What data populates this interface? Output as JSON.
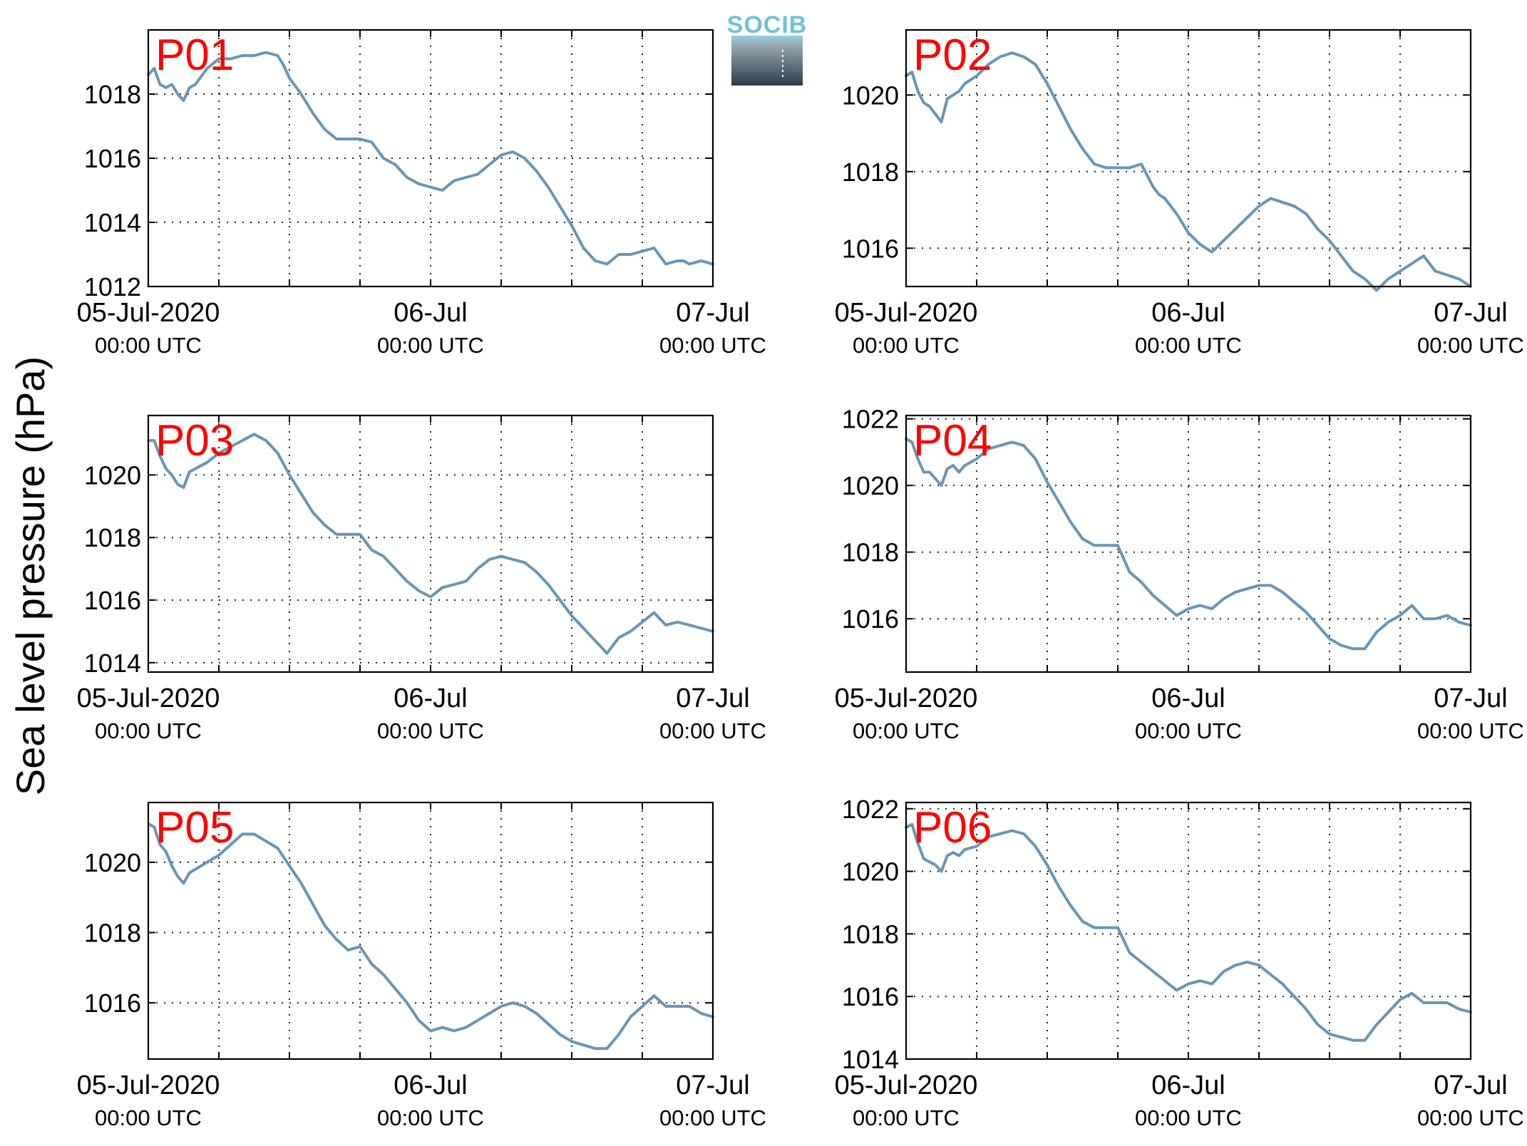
{
  "figure": {
    "ylabel": "Sea level pressure (hPa)",
    "logo_text": "SOCIB",
    "line_color": "#6a95b6",
    "tag_color": "#ff0000"
  },
  "chart_data": [
    {
      "type": "line",
      "tag": "P01",
      "ylim": [
        1012,
        1020
      ],
      "yticks": [
        1012,
        1014,
        1016,
        1018
      ],
      "xlim": [
        0,
        48
      ],
      "x_tick_hours": [
        0,
        24,
        48
      ],
      "x_tick_labels": [
        [
          "05-Jul-2020",
          "00:00 UTC"
        ],
        [
          "06-Jul",
          "00:00 UTC"
        ],
        [
          "07-Jul",
          "00:00 UTC"
        ]
      ],
      "x_unit": "hours since 05-Jul-2020 00:00 UTC",
      "grid": true,
      "series": [
        {
          "x": [
            0,
            0.5,
            1,
            1.5,
            2,
            2.5,
            3,
            3.5,
            4,
            5,
            6,
            7,
            8,
            9,
            10,
            11,
            11.5,
            12,
            13,
            14,
            15,
            16,
            17,
            18,
            19,
            20,
            21,
            22,
            23,
            24,
            25,
            26,
            27,
            28,
            29,
            30,
            31,
            32,
            33,
            34,
            35,
            36,
            37,
            38,
            39,
            40,
            41,
            42,
            43,
            44,
            45,
            45.5,
            46,
            47,
            48
          ],
          "y": [
            1018.6,
            1018.8,
            1018.3,
            1018.2,
            1018.3,
            1018.0,
            1017.8,
            1018.2,
            1018.3,
            1018.8,
            1019.1,
            1019.1,
            1019.2,
            1019.2,
            1019.3,
            1019.2,
            1018.9,
            1018.5,
            1018.0,
            1017.4,
            1016.9,
            1016.6,
            1016.6,
            1016.6,
            1016.5,
            1016.0,
            1015.8,
            1015.4,
            1015.2,
            1015.1,
            1015.0,
            1015.3,
            1015.4,
            1015.5,
            1015.8,
            1016.1,
            1016.2,
            1016.0,
            1015.6,
            1015.1,
            1014.5,
            1013.9,
            1013.2,
            1012.8,
            1012.7,
            1013.0,
            1013.0,
            1013.1,
            1013.2,
            1012.7,
            1012.8,
            1012.8,
            1012.7,
            1012.8,
            1012.7
          ]
        }
      ]
    },
    {
      "type": "line",
      "tag": "P02",
      "ylim": [
        1015,
        1021.7
      ],
      "yticks": [
        1016,
        1018,
        1020
      ],
      "xlim": [
        0,
        48
      ],
      "x_tick_hours": [
        0,
        24,
        48
      ],
      "x_tick_labels": [
        [
          "05-Jul-2020",
          "00:00 UTC"
        ],
        [
          "06-Jul",
          "00:00 UTC"
        ],
        [
          "07-Jul",
          "00:00 UTC"
        ]
      ],
      "x_unit": "hours since 05-Jul-2020 00:00 UTC",
      "grid": true,
      "series": [
        {
          "x": [
            0,
            0.5,
            1,
            1.5,
            2,
            2.5,
            3,
            3.5,
            4,
            4.5,
            5,
            6,
            7,
            8,
            9,
            10,
            11,
            12,
            13,
            14,
            15,
            16,
            17,
            18,
            19,
            20,
            21,
            21.5,
            22,
            23,
            24,
            25,
            26,
            27,
            28,
            29,
            30,
            31,
            32,
            33,
            34,
            35,
            36,
            37,
            38,
            39,
            40,
            41,
            42,
            43,
            44,
            45,
            46,
            47,
            48
          ],
          "y": [
            1020.5,
            1020.6,
            1020.1,
            1019.8,
            1019.7,
            1019.5,
            1019.3,
            1019.9,
            1020.0,
            1020.1,
            1020.3,
            1020.5,
            1020.8,
            1021.0,
            1021.1,
            1021.0,
            1020.8,
            1020.3,
            1019.7,
            1019.1,
            1018.6,
            1018.2,
            1018.1,
            1018.1,
            1018.1,
            1018.2,
            1017.6,
            1017.4,
            1017.3,
            1016.9,
            1016.4,
            1016.1,
            1015.9,
            1016.2,
            1016.5,
            1016.8,
            1017.1,
            1017.3,
            1017.2,
            1017.1,
            1016.9,
            1016.5,
            1016.2,
            1015.8,
            1015.4,
            1015.2,
            1014.9,
            1015.2,
            1015.4,
            1015.6,
            1015.8,
            1015.4,
            1015.3,
            1015.2,
            1015.0
          ]
        }
      ]
    },
    {
      "type": "line",
      "tag": "P03",
      "ylim": [
        1013.7,
        1021.9
      ],
      "yticks": [
        1014,
        1016,
        1018,
        1020
      ],
      "xlim": [
        0,
        48
      ],
      "x_tick_hours": [
        0,
        24,
        48
      ],
      "x_tick_labels": [
        [
          "05-Jul-2020",
          "00:00 UTC"
        ],
        [
          "06-Jul",
          "00:00 UTC"
        ],
        [
          "07-Jul",
          "00:00 UTC"
        ]
      ],
      "x_unit": "hours since 05-Jul-2020 00:00 UTC",
      "grid": true,
      "series": [
        {
          "x": [
            0,
            0.5,
            1,
            1.5,
            2,
            2.5,
            3,
            3.5,
            4,
            4.5,
            5,
            6,
            7,
            8,
            9,
            10,
            11,
            12,
            13,
            14,
            15,
            16,
            17,
            18,
            19,
            20,
            21,
            22,
            23,
            24,
            25,
            26,
            27,
            28,
            29,
            30,
            31,
            32,
            33,
            34,
            35,
            36,
            37,
            38,
            38.5,
            39,
            40,
            41,
            42,
            43,
            44,
            45,
            46,
            47,
            48
          ],
          "y": [
            1021.1,
            1021.1,
            1020.6,
            1020.2,
            1020.0,
            1019.7,
            1019.6,
            1020.1,
            1020.2,
            1020.3,
            1020.4,
            1020.7,
            1020.9,
            1021.1,
            1021.3,
            1021.1,
            1020.7,
            1020.0,
            1019.4,
            1018.8,
            1018.4,
            1018.1,
            1018.1,
            1018.1,
            1017.6,
            1017.4,
            1017.0,
            1016.6,
            1016.3,
            1016.1,
            1016.4,
            1016.5,
            1016.6,
            1017.0,
            1017.3,
            1017.4,
            1017.3,
            1017.2,
            1016.9,
            1016.5,
            1016.0,
            1015.5,
            1015.1,
            1014.7,
            1014.5,
            1014.3,
            1014.8,
            1015.0,
            1015.3,
            1015.6,
            1015.2,
            1015.3,
            1015.2,
            1015.1,
            1015.0
          ]
        }
      ]
    },
    {
      "type": "line",
      "tag": "P04",
      "ylim": [
        1014.4,
        1022.1
      ],
      "yticks": [
        1016,
        1018,
        1020,
        1022
      ],
      "xlim": [
        0,
        48
      ],
      "x_tick_hours": [
        0,
        24,
        48
      ],
      "x_tick_labels": [
        [
          "05-Jul-2020",
          "00:00 UTC"
        ],
        [
          "06-Jul",
          "00:00 UTC"
        ],
        [
          "07-Jul",
          "00:00 UTC"
        ]
      ],
      "x_unit": "hours since 05-Jul-2020 00:00 UTC",
      "grid": true,
      "series": [
        {
          "x": [
            0,
            0.5,
            1,
            1.5,
            2,
            2.5,
            3,
            3.5,
            4,
            4.5,
            5,
            6,
            7,
            8,
            9,
            10,
            11,
            12,
            13,
            14,
            15,
            16,
            17,
            18,
            19,
            20,
            21,
            22,
            23,
            24,
            25,
            26,
            27,
            28,
            29,
            30,
            31,
            32,
            33,
            34,
            35,
            36,
            37,
            38,
            39,
            40,
            41,
            42,
            43,
            44,
            45,
            46,
            47,
            48
          ],
          "y": [
            1021.4,
            1021.3,
            1020.8,
            1020.4,
            1020.4,
            1020.2,
            1020.0,
            1020.5,
            1020.6,
            1020.4,
            1020.6,
            1020.8,
            1021.1,
            1021.2,
            1021.3,
            1021.2,
            1020.8,
            1020.1,
            1019.5,
            1018.9,
            1018.4,
            1018.2,
            1018.2,
            1018.2,
            1017.4,
            1017.1,
            1016.7,
            1016.4,
            1016.1,
            1016.3,
            1016.4,
            1016.3,
            1016.6,
            1016.8,
            1016.9,
            1017.0,
            1017.0,
            1016.8,
            1016.5,
            1016.2,
            1015.8,
            1015.4,
            1015.2,
            1015.1,
            1015.1,
            1015.6,
            1015.9,
            1016.1,
            1016.4,
            1016.0,
            1016.0,
            1016.1,
            1015.9,
            1015.8
          ]
        }
      ]
    },
    {
      "type": "line",
      "tag": "P05",
      "ylim": [
        1014.4,
        1021.7
      ],
      "yticks": [
        1016,
        1018,
        1020
      ],
      "xlim": [
        0,
        48
      ],
      "x_tick_hours": [
        0,
        24,
        48
      ],
      "x_tick_labels": [
        [
          "05-Jul-2020",
          "00:00 UTC"
        ],
        [
          "06-Jul",
          "00:00 UTC"
        ],
        [
          "07-Jul",
          "00:00 UTC"
        ]
      ],
      "x_unit": "hours since 05-Jul-2020 00:00 UTC",
      "grid": true,
      "series": [
        {
          "x": [
            0,
            0.5,
            1,
            1.5,
            2,
            2.5,
            3,
            3.5,
            4,
            4.5,
            5,
            6,
            7,
            8,
            9,
            10,
            11,
            12,
            13,
            14,
            15,
            16,
            17,
            18,
            19,
            20,
            21,
            22,
            23,
            24,
            25,
            26,
            27,
            28,
            29,
            30,
            31,
            32,
            33,
            34,
            35,
            36,
            37,
            38,
            39,
            40,
            41,
            42,
            43,
            44,
            45,
            46,
            47,
            48
          ],
          "y": [
            1021.1,
            1021.0,
            1020.5,
            1020.3,
            1019.9,
            1019.6,
            1019.4,
            1019.7,
            1019.8,
            1019.9,
            1020.0,
            1020.2,
            1020.5,
            1020.8,
            1020.8,
            1020.6,
            1020.4,
            1019.9,
            1019.4,
            1018.8,
            1018.2,
            1017.8,
            1017.5,
            1017.6,
            1017.1,
            1016.8,
            1016.4,
            1016.0,
            1015.5,
            1015.2,
            1015.3,
            1015.2,
            1015.3,
            1015.5,
            1015.7,
            1015.9,
            1016.0,
            1015.9,
            1015.7,
            1015.4,
            1015.1,
            1014.9,
            1014.8,
            1014.7,
            1014.7,
            1015.1,
            1015.6,
            1015.9,
            1016.2,
            1015.9,
            1015.9,
            1015.9,
            1015.7,
            1015.6
          ]
        }
      ]
    },
    {
      "type": "line",
      "tag": "P06",
      "ylim": [
        1014,
        1022.2
      ],
      "yticks": [
        1014,
        1016,
        1018,
        1020,
        1022
      ],
      "xlim": [
        0,
        48
      ],
      "x_tick_hours": [
        0,
        24,
        48
      ],
      "x_tick_labels": [
        [
          "05-Jul-2020",
          "00:00 UTC"
        ],
        [
          "06-Jul",
          "00:00 UTC"
        ],
        [
          "07-Jul",
          "00:00 UTC"
        ]
      ],
      "x_unit": "hours since 05-Jul-2020 00:00 UTC",
      "grid": true,
      "series": [
        {
          "x": [
            0,
            0.5,
            1,
            1.5,
            2,
            2.5,
            3,
            3.5,
            4,
            4.5,
            5,
            6,
            7,
            8,
            9,
            10,
            11,
            12,
            13,
            14,
            15,
            16,
            17,
            18,
            19,
            20,
            21,
            22,
            23,
            24,
            25,
            26,
            27,
            28,
            29,
            30,
            31,
            32,
            33,
            34,
            35,
            36,
            37,
            38,
            39,
            40,
            41,
            42,
            43,
            44,
            45,
            46,
            47,
            48
          ],
          "y": [
            1021.4,
            1021.5,
            1020.9,
            1020.4,
            1020.3,
            1020.2,
            1020.0,
            1020.5,
            1020.6,
            1020.5,
            1020.7,
            1020.8,
            1021.1,
            1021.2,
            1021.3,
            1021.2,
            1020.8,
            1020.2,
            1019.5,
            1018.9,
            1018.4,
            1018.2,
            1018.2,
            1018.2,
            1017.4,
            1017.1,
            1016.8,
            1016.5,
            1016.2,
            1016.4,
            1016.5,
            1016.4,
            1016.8,
            1017.0,
            1017.1,
            1017.0,
            1016.7,
            1016.4,
            1016.0,
            1015.6,
            1015.1,
            1014.8,
            1014.7,
            1014.6,
            1014.6,
            1015.1,
            1015.5,
            1015.9,
            1016.1,
            1015.8,
            1015.8,
            1015.8,
            1015.6,
            1015.5
          ]
        }
      ]
    }
  ]
}
